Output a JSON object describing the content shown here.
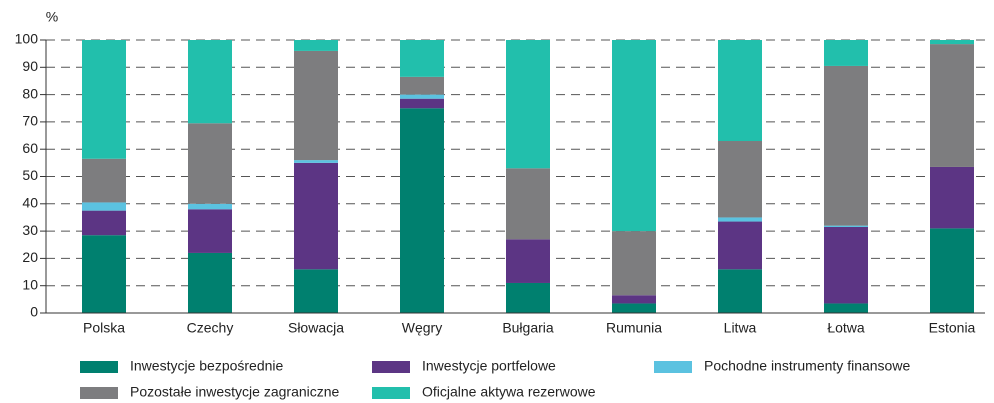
{
  "chart_data": {
    "type": "stacked_bar",
    "ylabel": "%",
    "categories": [
      "Polska",
      "Czechy",
      "Słowacja",
      "Węgry",
      "Bułgaria",
      "Rumunia",
      "Litwa",
      "Łotwa",
      "Estonia"
    ],
    "series": [
      {
        "name": "Inwestycje bezpośrednie",
        "color": "#00806f",
        "values": [
          28.5,
          22,
          16,
          75,
          11,
          3.5,
          16,
          3.5,
          31
        ]
      },
      {
        "name": "Inwestycje portfelowe",
        "color": "#5c3584",
        "values": [
          9,
          16,
          39,
          3.5,
          16,
          3,
          17.5,
          28,
          22.5
        ]
      },
      {
        "name": "Pochodne instrumenty finansowe",
        "color": "#5bc2e0",
        "values": [
          3,
          2,
          1,
          1.5,
          0,
          0,
          1.5,
          0.5,
          0
        ]
      },
      {
        "name": "Pozostałe inwestycje zagraniczne",
        "color": "#7d7d7f",
        "values": [
          16,
          29.5,
          40,
          6.5,
          26,
          23.5,
          28,
          58.5,
          45
        ]
      },
      {
        "name": "Oficjalne aktywa rezerwowe",
        "color": "#22bfac",
        "values": [
          43.5,
          30.5,
          4,
          13.5,
          47,
          70,
          37,
          9.5,
          1.5
        ]
      }
    ],
    "ylim": [
      0,
      100
    ],
    "yticks": [
      0,
      10,
      20,
      30,
      40,
      50,
      60,
      70,
      80,
      90,
      100
    ],
    "grid": true
  }
}
